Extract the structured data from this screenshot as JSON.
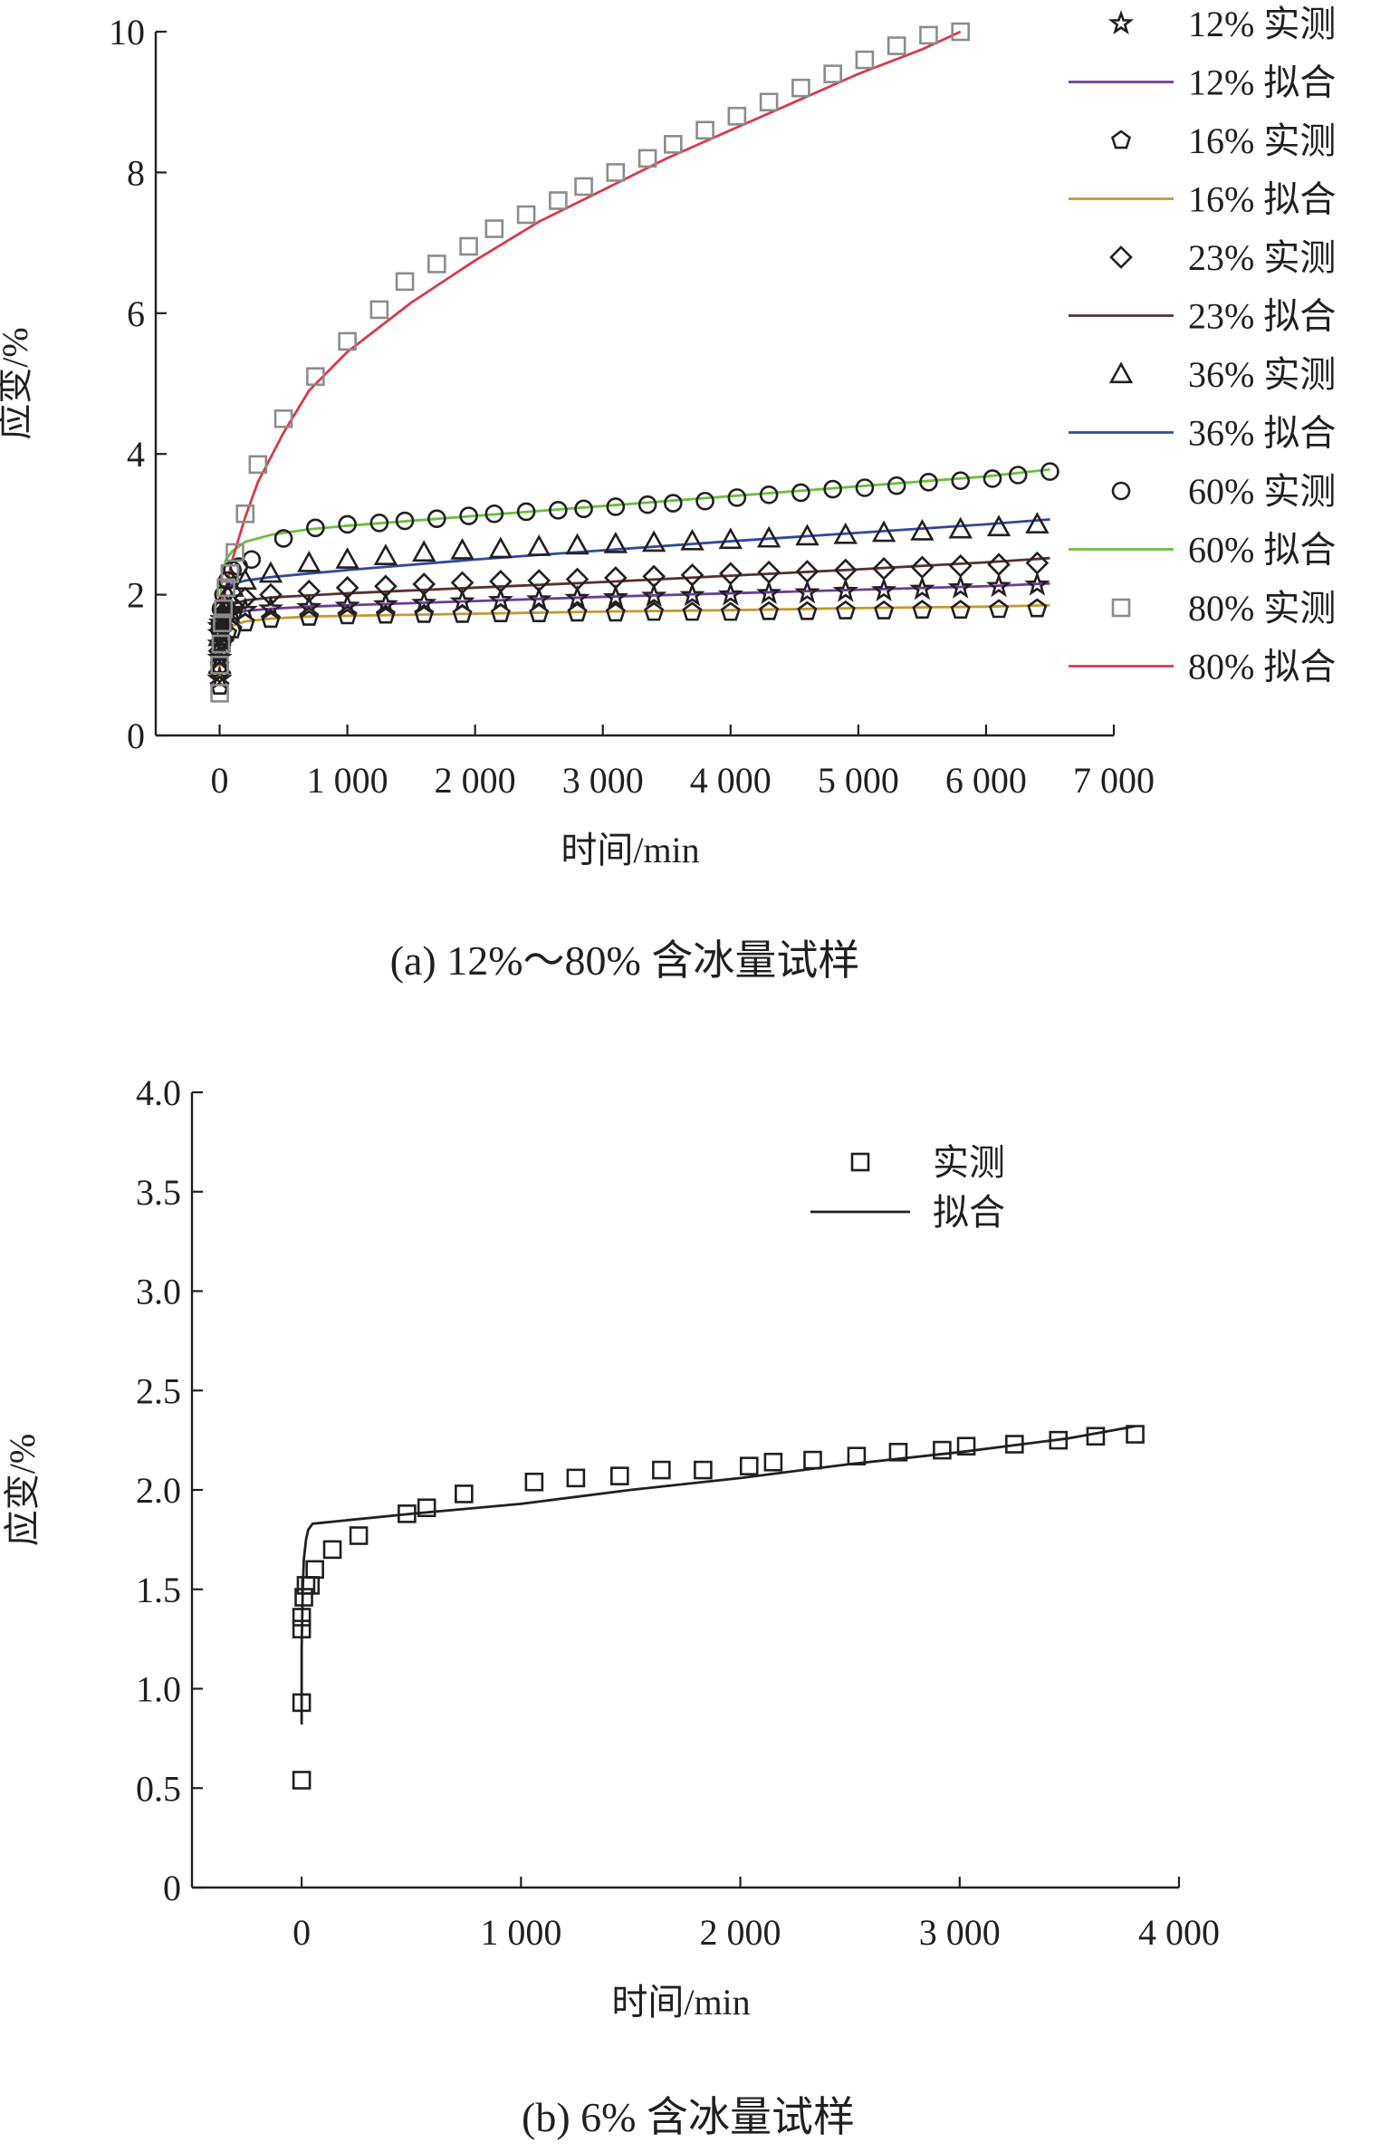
{
  "chart_data": [
    {
      "type": "scatter",
      "caption": "(a) 12%～80% 含冰量试样",
      "xlabel": "时间/min",
      "ylabel": "应变/%",
      "xlim": [
        -500,
        7000
      ],
      "ylim": [
        0,
        10
      ],
      "xticks": [
        0,
        1000,
        2000,
        3000,
        4000,
        5000,
        6000,
        7000
      ],
      "xtick_labels": [
        "0",
        "1 000",
        "2 000",
        "3 000",
        "4 000",
        "5 000",
        "6 000",
        "7 000"
      ],
      "yticks": [
        0,
        2,
        4,
        6,
        8,
        10
      ],
      "ytick_labels": [
        "0",
        "2",
        "4",
        "6",
        "8",
        "10"
      ],
      "legend_position": "right",
      "legend": [
        {
          "label": "12% 实测",
          "kind": "marker",
          "marker": "star",
          "color": "#231f20"
        },
        {
          "label": "12% 拟合",
          "kind": "line",
          "color": "#6a3d9a"
        },
        {
          "label": "16% 实测",
          "kind": "marker",
          "marker": "pentagon",
          "color": "#231f20"
        },
        {
          "label": "16% 拟合",
          "kind": "line",
          "color": "#c49a2c"
        },
        {
          "label": "23% 实测",
          "kind": "marker",
          "marker": "diamond",
          "color": "#231f20"
        },
        {
          "label": "23% 拟合",
          "kind": "line",
          "color": "#5a2f2f"
        },
        {
          "label": "36% 实测",
          "kind": "marker",
          "marker": "triangle",
          "color": "#231f20"
        },
        {
          "label": "36% 拟合",
          "kind": "line",
          "color": "#2e4a9e"
        },
        {
          "label": "60% 实测",
          "kind": "marker",
          "marker": "circle",
          "color": "#231f20"
        },
        {
          "label": "60% 拟合",
          "kind": "line",
          "color": "#6cbf3c"
        },
        {
          "label": "80% 实测",
          "kind": "marker",
          "marker": "square",
          "color": "#8c8c8c"
        },
        {
          "label": "80% 拟合",
          "kind": "line",
          "color": "#d93a49"
        }
      ],
      "series": [
        {
          "kind": "marker",
          "marker": "star",
          "color": "#231f20",
          "x": [
            0,
            0,
            0,
            0,
            0,
            10,
            20,
            40,
            70,
            100,
            200,
            400,
            700,
            1000,
            1300,
            1600,
            1900,
            2200,
            2500,
            2800,
            3100,
            3400,
            3700,
            4000,
            4300,
            4600,
            4900,
            5200,
            5500,
            5800,
            6100,
            6400
          ],
          "y": [
            0.8,
            1.1,
            1.3,
            1.45,
            1.55,
            1.6,
            1.65,
            1.7,
            1.72,
            1.75,
            1.78,
            1.8,
            1.82,
            1.84,
            1.86,
            1.88,
            1.9,
            1.92,
            1.93,
            1.95,
            1.96,
            1.98,
            1.99,
            2.0,
            2.02,
            2.03,
            2.05,
            2.06,
            2.08,
            2.1,
            2.12,
            2.14
          ]
        },
        {
          "kind": "line",
          "color": "#6a3d9a",
          "x": [
            0,
            5,
            20,
            50,
            100,
            200,
            400,
            700,
            1000,
            2000,
            3000,
            4000,
            5000,
            6000,
            6500
          ],
          "y": [
            0.9,
            1.35,
            1.55,
            1.65,
            1.72,
            1.77,
            1.8,
            1.83,
            1.85,
            1.91,
            1.97,
            2.02,
            2.07,
            2.12,
            2.16
          ]
        },
        {
          "kind": "marker",
          "marker": "pentagon",
          "color": "#231f20",
          "x": [
            0,
            0,
            10,
            30,
            60,
            100,
            200,
            400,
            700,
            1000,
            1300,
            1600,
            1900,
            2200,
            2500,
            2800,
            3100,
            3400,
            3700,
            4000,
            4300,
            4600,
            4900,
            5200,
            5500,
            5800,
            6100,
            6400
          ],
          "y": [
            0.7,
            1.0,
            1.2,
            1.35,
            1.45,
            1.5,
            1.6,
            1.65,
            1.68,
            1.7,
            1.71,
            1.72,
            1.72,
            1.73,
            1.73,
            1.74,
            1.74,
            1.75,
            1.75,
            1.75,
            1.76,
            1.76,
            1.77,
            1.77,
            1.78,
            1.78,
            1.79,
            1.8
          ]
        },
        {
          "kind": "line",
          "color": "#c49a2c",
          "x": [
            0,
            5,
            20,
            50,
            100,
            200,
            400,
            700,
            1000,
            2000,
            3000,
            4000,
            5000,
            6000,
            6500
          ],
          "y": [
            0.8,
            1.2,
            1.4,
            1.5,
            1.56,
            1.62,
            1.66,
            1.69,
            1.7,
            1.73,
            1.76,
            1.78,
            1.81,
            1.83,
            1.85
          ]
        },
        {
          "kind": "marker",
          "marker": "diamond",
          "color": "#231f20",
          "x": [
            0,
            0,
            10,
            30,
            60,
            100,
            200,
            400,
            700,
            1000,
            1300,
            1600,
            1900,
            2200,
            2500,
            2800,
            3100,
            3400,
            3700,
            4000,
            4300,
            4600,
            4900,
            5200,
            5500,
            5800,
            6100,
            6400
          ],
          "y": [
            0.9,
            1.2,
            1.5,
            1.7,
            1.8,
            1.85,
            1.95,
            2.0,
            2.05,
            2.1,
            2.12,
            2.15,
            2.17,
            2.19,
            2.2,
            2.22,
            2.24,
            2.26,
            2.28,
            2.3,
            2.32,
            2.33,
            2.35,
            2.37,
            2.39,
            2.41,
            2.43,
            2.45
          ]
        },
        {
          "kind": "line",
          "color": "#5a2f2f",
          "x": [
            0,
            5,
            20,
            50,
            100,
            200,
            400,
            700,
            1000,
            2000,
            3000,
            4000,
            5000,
            6000,
            6500
          ],
          "y": [
            1.0,
            1.5,
            1.7,
            1.8,
            1.86,
            1.92,
            1.96,
            1.99,
            2.02,
            2.1,
            2.18,
            2.27,
            2.36,
            2.46,
            2.52
          ]
        },
        {
          "kind": "marker",
          "marker": "triangle",
          "color": "#231f20",
          "x": [
            0,
            0,
            10,
            30,
            60,
            100,
            200,
            400,
            700,
            1000,
            1300,
            1600,
            1900,
            2200,
            2500,
            2800,
            3100,
            3400,
            3700,
            4000,
            4300,
            4600,
            4900,
            5200,
            5500,
            5800,
            6100,
            6400
          ],
          "y": [
            1.0,
            1.4,
            1.7,
            1.9,
            2.0,
            2.1,
            2.2,
            2.3,
            2.45,
            2.5,
            2.55,
            2.6,
            2.63,
            2.65,
            2.68,
            2.7,
            2.72,
            2.74,
            2.76,
            2.78,
            2.8,
            2.83,
            2.85,
            2.88,
            2.9,
            2.93,
            2.96,
            3.0
          ]
        },
        {
          "kind": "line",
          "color": "#2e4a9e",
          "x": [
            0,
            5,
            20,
            50,
            100,
            200,
            400,
            700,
            1000,
            2000,
            3000,
            4000,
            5000,
            6000,
            6500
          ],
          "y": [
            1.1,
            1.7,
            1.95,
            2.08,
            2.15,
            2.2,
            2.25,
            2.3,
            2.35,
            2.5,
            2.63,
            2.76,
            2.88,
            3.0,
            3.07
          ]
        },
        {
          "kind": "marker",
          "marker": "circle",
          "color": "#231f20",
          "x": [
            0,
            0,
            10,
            30,
            60,
            100,
            150,
            250,
            500,
            750,
            1000,
            1250,
            1450,
            1700,
            1950,
            2150,
            2400,
            2650,
            2850,
            3100,
            3350,
            3550,
            3800,
            4050,
            4300,
            4550,
            4800,
            5050,
            5300,
            5550,
            5800,
            6050,
            6250,
            6500
          ],
          "y": [
            1.0,
            1.5,
            1.8,
            2.0,
            2.2,
            2.35,
            2.4,
            2.5,
            2.8,
            2.95,
            3.0,
            3.02,
            3.05,
            3.08,
            3.12,
            3.15,
            3.18,
            3.2,
            3.22,
            3.25,
            3.28,
            3.3,
            3.33,
            3.38,
            3.42,
            3.45,
            3.5,
            3.52,
            3.55,
            3.6,
            3.62,
            3.65,
            3.7,
            3.75
          ]
        },
        {
          "kind": "line",
          "color": "#6cbf3c",
          "x": [
            0,
            5,
            20,
            50,
            100,
            200,
            400,
            700,
            1000,
            2000,
            3000,
            4000,
            5000,
            6000,
            6500
          ],
          "y": [
            1.2,
            1.9,
            2.3,
            2.5,
            2.62,
            2.75,
            2.85,
            2.93,
            2.98,
            3.12,
            3.26,
            3.4,
            3.54,
            3.68,
            3.78
          ]
        },
        {
          "kind": "marker",
          "marker": "square",
          "color": "#8c8c8c",
          "x": [
            0,
            0,
            10,
            20,
            30,
            50,
            80,
            120,
            200,
            300,
            500,
            750,
            1000,
            1250,
            1450,
            1700,
            1950,
            2150,
            2400,
            2650,
            2850,
            3100,
            3350,
            3550,
            3800,
            4050,
            4300,
            4550,
            4800,
            5050,
            5300,
            5550,
            5800
          ],
          "y": [
            0.6,
            1.0,
            1.3,
            1.6,
            1.8,
            2.1,
            2.3,
            2.6,
            3.15,
            3.85,
            4.5,
            5.1,
            5.6,
            6.05,
            6.45,
            6.7,
            6.95,
            7.2,
            7.4,
            7.6,
            7.8,
            8.0,
            8.2,
            8.4,
            8.6,
            8.8,
            9.0,
            9.2,
            9.4,
            9.6,
            9.8,
            9.95,
            10.0
          ]
        },
        {
          "kind": "line",
          "color": "#d93a49",
          "x": [
            0,
            10,
            50,
            100,
            200,
            300,
            500,
            700,
            1000,
            1500,
            2000,
            2500,
            3000,
            3500,
            4000,
            4500,
            5000,
            5500,
            5800
          ],
          "y": [
            1.5,
            1.8,
            2.1,
            2.5,
            3.1,
            3.6,
            4.3,
            4.9,
            5.45,
            6.15,
            6.75,
            7.3,
            7.75,
            8.2,
            8.6,
            9.0,
            9.4,
            9.75,
            10.0
          ]
        }
      ]
    },
    {
      "type": "scatter",
      "caption": "(b) 6% 含冰量试样",
      "xlabel": "时间/min",
      "ylabel": "应变/%",
      "xlim": [
        -500,
        4000
      ],
      "ylim": [
        0,
        4.0
      ],
      "xticks": [
        0,
        1000,
        2000,
        3000,
        4000
      ],
      "xtick_labels": [
        "0",
        "1 000",
        "2 000",
        "3 000",
        "4 000"
      ],
      "yticks": [
        0,
        0.5,
        1.0,
        1.5,
        2.0,
        2.5,
        3.0,
        3.5,
        4.0
      ],
      "ytick_labels": [
        "0",
        "0.5",
        "1.0",
        "1.5",
        "2.0",
        "2.5",
        "3.0",
        "3.5",
        "4.0"
      ],
      "legend_position": "top-right",
      "legend": [
        {
          "label": "实测",
          "kind": "marker",
          "marker": "square",
          "color": "#231f20"
        },
        {
          "label": "拟合",
          "kind": "line",
          "color": "#231f20"
        }
      ],
      "series": [
        {
          "kind": "marker",
          "marker": "square",
          "color": "#231f20",
          "x": [
            0,
            0,
            0,
            0,
            10,
            20,
            40,
            60,
            140,
            260,
            480,
            570,
            740,
            1060,
            1250,
            1450,
            1640,
            1830,
            2040,
            2150,
            2330,
            2530,
            2720,
            2920,
            3030,
            3250,
            3450,
            3620,
            3800
          ],
          "y": [
            0.54,
            0.93,
            1.3,
            1.36,
            1.46,
            1.52,
            1.52,
            1.6,
            1.7,
            1.77,
            1.88,
            1.91,
            1.98,
            2.04,
            2.06,
            2.07,
            2.1,
            2.1,
            2.12,
            2.14,
            2.15,
            2.17,
            2.19,
            2.2,
            2.22,
            2.23,
            2.25,
            2.27,
            2.28
          ]
        },
        {
          "kind": "line",
          "color": "#231f20",
          "x": [
            0,
            0,
            5,
            10,
            20,
            30,
            50,
            500,
            1000,
            1500,
            2000,
            2500,
            3000,
            3500,
            3800
          ],
          "y": [
            0.82,
            1.2,
            1.5,
            1.65,
            1.75,
            1.8,
            1.83,
            1.88,
            1.93,
            2.0,
            2.06,
            2.13,
            2.19,
            2.26,
            2.32
          ]
        }
      ]
    }
  ]
}
